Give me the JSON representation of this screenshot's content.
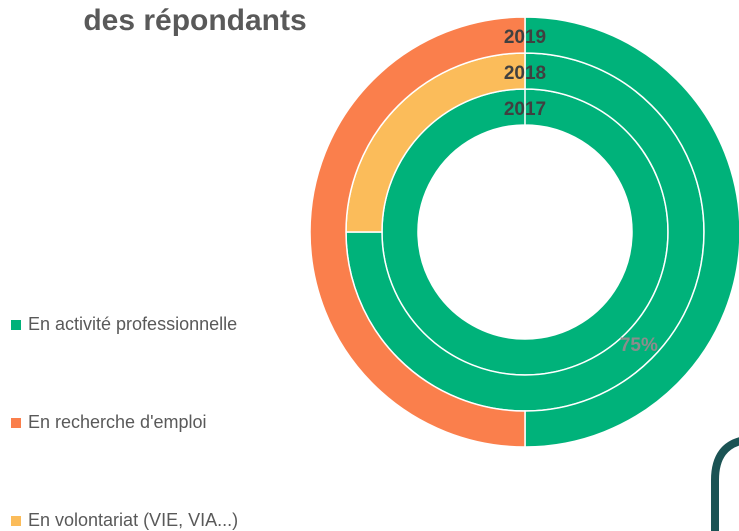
{
  "chart_data": {
    "type": "donut",
    "title": "des répondants",
    "categories": [
      "En activité professionnelle",
      "En recherche d'emploi",
      "En volontariat (VIE, VIA...)"
    ],
    "colors": [
      "#00b27a",
      "#fa7f4c",
      "#fbbc5a"
    ],
    "series": [
      {
        "name": "2017",
        "values": [
          100,
          0,
          0
        ]
      },
      {
        "name": "2018",
        "values": [
          75,
          0,
          25
        ],
        "value_labels": [
          "75%",
          null,
          null
        ]
      },
      {
        "name": "2019",
        "values": [
          50,
          50,
          0
        ]
      }
    ]
  }
}
